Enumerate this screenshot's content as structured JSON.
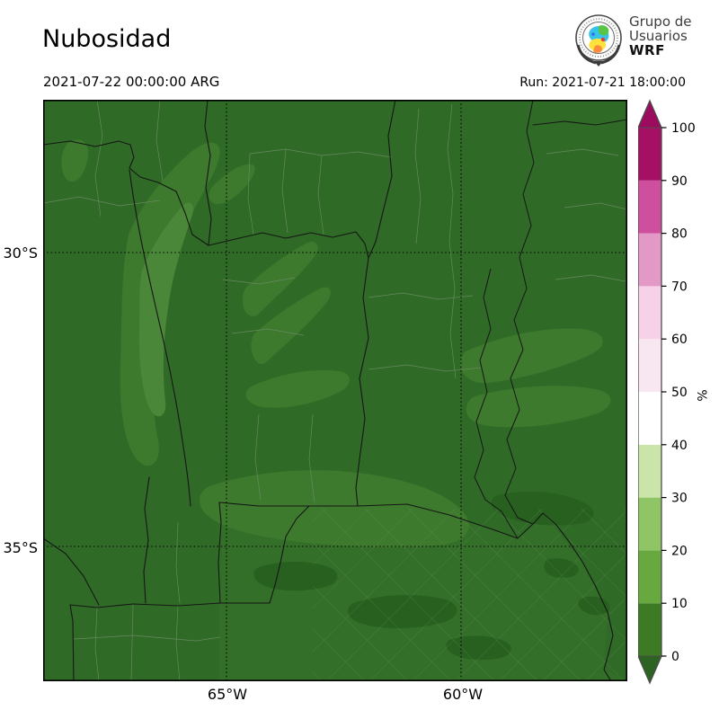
{
  "header": {
    "title": "Nubosidad",
    "valid_time": "2021-07-22 00:00:00 ARG",
    "run_label": "Run: 2021-07-21 18:00:00",
    "logo": {
      "line1": "Grupo de",
      "line2": "Usuarios",
      "line3": "WRF"
    }
  },
  "axes": {
    "lat_ticks": [
      {
        "label": "30°S"
      },
      {
        "label": "35°S"
      }
    ],
    "lon_ticks": [
      {
        "label": "65°W"
      },
      {
        "label": "60°W"
      }
    ]
  },
  "colorbar": {
    "unit": "%",
    "ticks": [
      0,
      10,
      20,
      30,
      40,
      50,
      60,
      70,
      80,
      90,
      100
    ],
    "segments": [
      {
        "from": 0,
        "to": 10,
        "color": "#3c7a23"
      },
      {
        "from": 10,
        "to": 20,
        "color": "#67a93f"
      },
      {
        "from": 20,
        "to": 30,
        "color": "#90c566"
      },
      {
        "from": 30,
        "to": 40,
        "color": "#cae4aa"
      },
      {
        "from": 40,
        "to": 50,
        "color": "#ffffff"
      },
      {
        "from": 50,
        "to": 60,
        "color": "#f8e6f1"
      },
      {
        "from": 60,
        "to": 70,
        "color": "#f6d1e8"
      },
      {
        "from": 70,
        "to": 80,
        "color": "#e399c6"
      },
      {
        "from": 80,
        "to": 90,
        "color": "#cd4f9d"
      },
      {
        "from": 90,
        "to": 100,
        "color": "#a50f64"
      }
    ],
    "under_color": "#2c6320",
    "over_color": "#9c0c5e",
    "outline_color": "#4d4d4d"
  },
  "map": {
    "palette": {
      "base_green": "#2f6b26",
      "se_green": "#336f28",
      "light_green": "#3d7a2d",
      "lighter_green": "#4a8739",
      "dark_green": "#27601f",
      "province_border": "#161616",
      "department_border": "#728c6c",
      "gridline": "#000000"
    }
  }
}
